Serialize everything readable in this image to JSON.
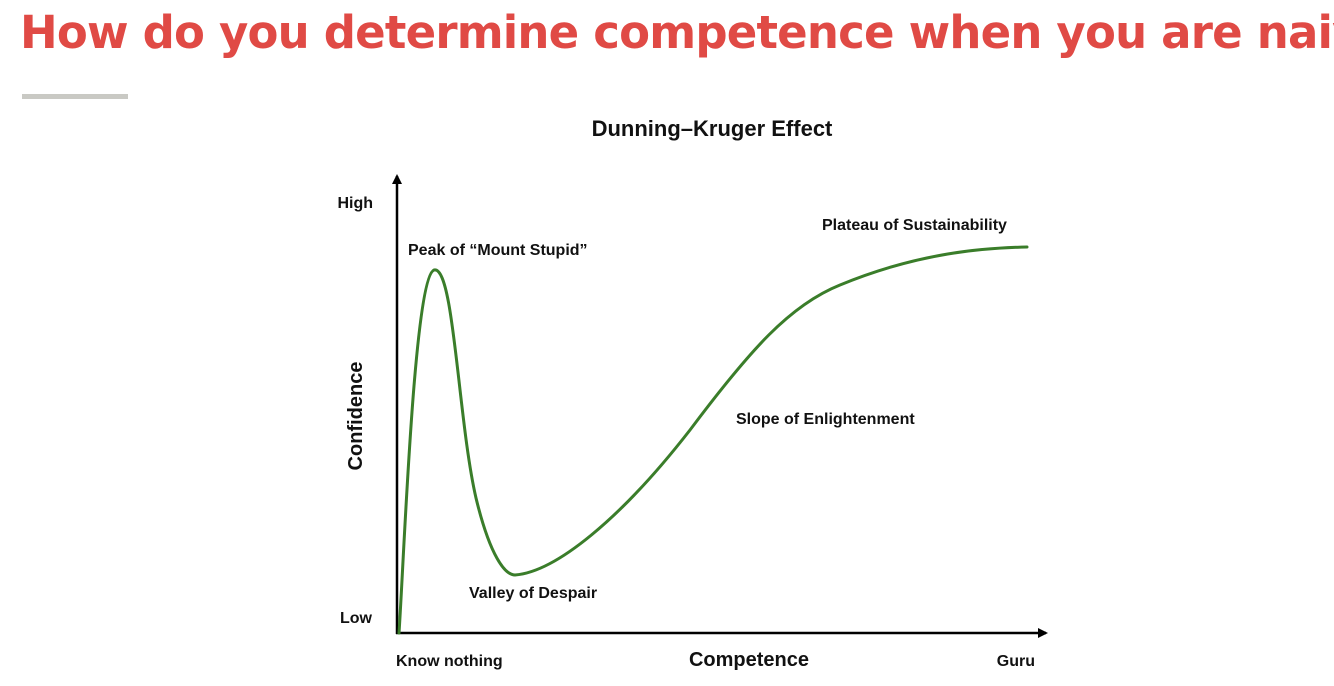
{
  "slide": {
    "title": "How do you determine competence when you are naive",
    "accent_color": "#e04a45",
    "rule_color": "#c9c9c4"
  },
  "diagram": {
    "title": "Dunning–Kruger Effect",
    "y_axis_label": "Confidence",
    "x_axis_label": "Competence",
    "y_high_label": "High",
    "y_low_label": "Low",
    "x_start_label": "Know nothing",
    "x_end_label": "Guru",
    "curve_color": "#3a7d2a",
    "stages": {
      "peak": "Peak of “Mount Stupid”",
      "valley": "Valley of Despair",
      "slope": "Slope of Enlightenment",
      "plateau": "Plateau of Sustainability"
    }
  }
}
